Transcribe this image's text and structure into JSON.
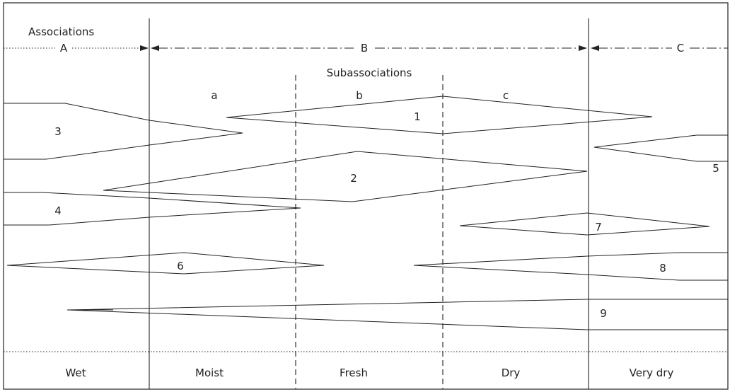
{
  "header": {
    "associations_label": "Associations",
    "subassociations_label": "Subassociations"
  },
  "associations": [
    "A",
    "B",
    "C"
  ],
  "subassociations": [
    "a",
    "b",
    "c"
  ],
  "species_labels": [
    "1",
    "2",
    "3",
    "4",
    "5",
    "6",
    "7",
    "8",
    "9"
  ],
  "moisture_classes": [
    "Wet",
    "Moist",
    "Fresh",
    "Dry",
    "Very dry"
  ]
}
